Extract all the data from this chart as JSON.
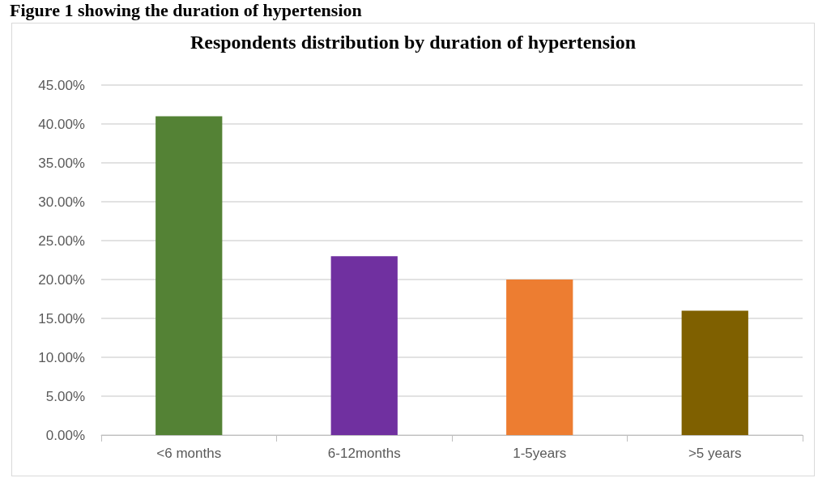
{
  "chart_data": {
    "type": "bar",
    "title": "Respondents distribution by duration of hypertension",
    "annotations": [
      "Figure 1 showing the duration of hypertension"
    ],
    "categories": [
      "<6 months",
      "6-12months",
      "1-5years",
      ">5 years"
    ],
    "values": [
      41,
      23,
      20,
      16
    ],
    "colors": [
      "#548235",
      "#7030a0",
      "#ed7d31",
      "#7f6000"
    ],
    "ylim": [
      0,
      45
    ],
    "yticks": [
      {
        "value": 0,
        "label": "0.00%"
      },
      {
        "value": 5,
        "label": "5.00%"
      },
      {
        "value": 10,
        "label": "10.00%"
      },
      {
        "value": 15,
        "label": "15.00%"
      },
      {
        "value": 20,
        "label": "20.00%"
      },
      {
        "value": 25,
        "label": "25.00%"
      },
      {
        "value": 30,
        "label": "30.00%"
      },
      {
        "value": 35,
        "label": "35.00%"
      },
      {
        "value": 40,
        "label": "40.00%"
      },
      {
        "value": 45,
        "label": "45.00%"
      }
    ],
    "grid": "y"
  }
}
